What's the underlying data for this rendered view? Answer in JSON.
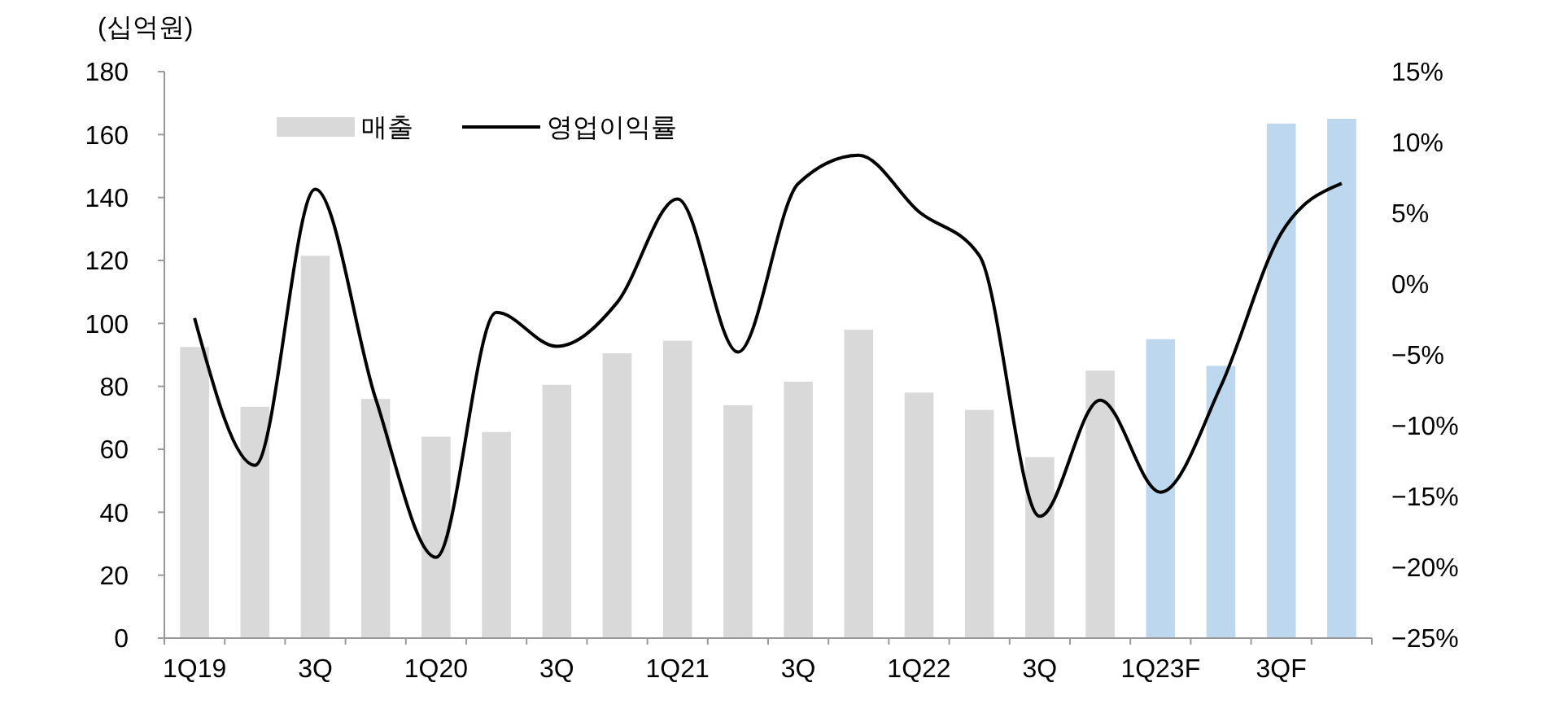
{
  "chart_data": {
    "type": "bar",
    "ylabel": "(십억원)",
    "categories": [
      "1Q19",
      null,
      "3Q",
      null,
      "1Q20",
      null,
      "3Q",
      null,
      "1Q21",
      null,
      "3Q",
      null,
      "1Q22",
      null,
      "3Q",
      null,
      "1Q23F",
      null,
      "3QF",
      null
    ],
    "series": [
      {
        "name": "매출",
        "color": "#d9d9d9",
        "colors": [
          "#d9d9d9",
          "#d9d9d9",
          "#d9d9d9",
          "#d9d9d9",
          "#d9d9d9",
          "#d9d9d9",
          "#d9d9d9",
          "#d9d9d9",
          "#d9d9d9",
          "#d9d9d9",
          "#d9d9d9",
          "#d9d9d9",
          "#d9d9d9",
          "#d9d9d9",
          "#d9d9d9",
          "#d9d9d9",
          "#bdd7ee",
          "#bdd7ee",
          "#bdd7ee",
          "#bdd7ee"
        ],
        "values": [
          92.5,
          73.5,
          121.5,
          76,
          64,
          65.5,
          80.5,
          90.5,
          94.5,
          74,
          81.5,
          98,
          78,
          72.5,
          57.5,
          85,
          95,
          86.5,
          163.5,
          165
        ]
      },
      {
        "name": "영업이익률",
        "type": "line",
        "axis": "y2",
        "color": "#000000",
        "values": [
          -2.4,
          -12.8,
          6.7,
          -8.1,
          -19.3,
          -2,
          -4.4,
          -1.3,
          6,
          -4.8,
          7.1,
          9.1,
          5.1,
          2,
          -16.4,
          -8.2,
          -14.7,
          -7.2,
          3.6,
          7.1
        ]
      }
    ],
    "ylim": [
      0,
      180
    ],
    "yticks": [
      0,
      20,
      40,
      60,
      80,
      100,
      120,
      140,
      160,
      180
    ],
    "y2lim": [
      -25,
      15
    ],
    "y2ticks": [
      {
        "value": -25,
        "label": "−25%"
      },
      {
        "value": -20,
        "label": "−20%"
      },
      {
        "value": -15,
        "label": "−15%"
      },
      {
        "value": -10,
        "label": "−10%"
      },
      {
        "value": -5,
        "label": "−5%"
      },
      {
        "value": 0,
        "label": "0%"
      },
      {
        "value": 5,
        "label": "5%"
      },
      {
        "value": 10,
        "label": "10%"
      },
      {
        "value": 15,
        "label": "15%"
      }
    ],
    "legend": "top left",
    "grid": false
  }
}
